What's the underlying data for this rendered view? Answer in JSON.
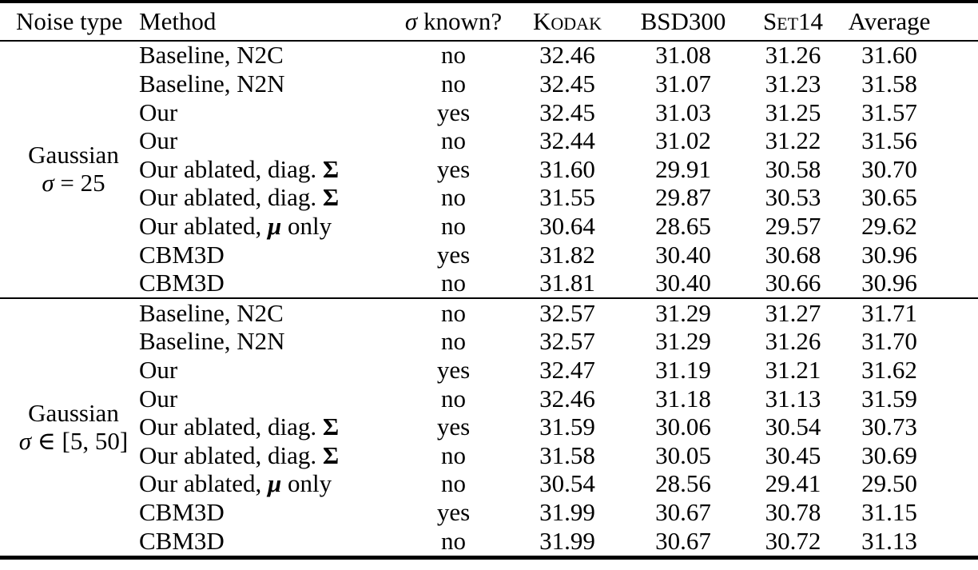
{
  "page": {
    "background": "#ffffff",
    "text_color": "#000000"
  },
  "table": {
    "columns": [
      {
        "key": "noise",
        "label": "Noise type",
        "align": "left",
        "small_caps": false
      },
      {
        "key": "method",
        "label": "Method",
        "align": "left",
        "small_caps": false
      },
      {
        "key": "sigma_known",
        "label": "σ known?",
        "align": "center",
        "small_caps": false
      },
      {
        "key": "kodak",
        "label": "Kodak",
        "align": "center",
        "small_caps": true
      },
      {
        "key": "bsd300",
        "label": "BSD300",
        "align": "center",
        "small_caps": false
      },
      {
        "key": "set14",
        "label": "Set14",
        "align": "center",
        "small_caps": true
      },
      {
        "key": "average",
        "label": "Average",
        "align": "center",
        "small_caps": false
      }
    ],
    "sections": [
      {
        "noise_type": {
          "line1": "Gaussian",
          "line2": "σ = 25"
        },
        "rows": [
          {
            "method": "Baseline, N2C",
            "sigma_known": "no",
            "kodak": "32.46",
            "bsd300": "31.08",
            "set14": "31.26",
            "average": "31.60"
          },
          {
            "method": "Baseline, N2N",
            "sigma_known": "no",
            "kodak": "32.45",
            "bsd300": "31.07",
            "set14": "31.23",
            "average": "31.58"
          },
          {
            "method": "Our",
            "sigma_known": "yes",
            "kodak": "32.45",
            "bsd300": "31.03",
            "set14": "31.25",
            "average": "31.57"
          },
          {
            "method": "Our",
            "sigma_known": "no",
            "kodak": "32.44",
            "bsd300": "31.02",
            "set14": "31.22",
            "average": "31.56"
          },
          {
            "method": "Our ablated, diag. Σ",
            "sigma_known": "yes",
            "kodak": "31.60",
            "bsd300": "29.91",
            "set14": "30.58",
            "average": "30.70"
          },
          {
            "method": "Our ablated, diag. Σ",
            "sigma_known": "no",
            "kodak": "31.55",
            "bsd300": "29.87",
            "set14": "30.53",
            "average": "30.65"
          },
          {
            "method": "Our ablated, μ only",
            "sigma_known": "no",
            "kodak": "30.64",
            "bsd300": "28.65",
            "set14": "29.57",
            "average": "29.62"
          },
          {
            "method": "CBM3D",
            "sigma_known": "yes",
            "kodak": "31.82",
            "bsd300": "30.40",
            "set14": "30.68",
            "average": "30.96"
          },
          {
            "method": "CBM3D",
            "sigma_known": "no",
            "kodak": "31.81",
            "bsd300": "30.40",
            "set14": "30.66",
            "average": "30.96"
          }
        ]
      },
      {
        "noise_type": {
          "line1": "Gaussian",
          "line2": "σ ∈ [5, 50]"
        },
        "rows": [
          {
            "method": "Baseline, N2C",
            "sigma_known": "no",
            "kodak": "32.57",
            "bsd300": "31.29",
            "set14": "31.27",
            "average": "31.71"
          },
          {
            "method": "Baseline, N2N",
            "sigma_known": "no",
            "kodak": "32.57",
            "bsd300": "31.29",
            "set14": "31.26",
            "average": "31.70"
          },
          {
            "method": "Our",
            "sigma_known": "yes",
            "kodak": "32.47",
            "bsd300": "31.19",
            "set14": "31.21",
            "average": "31.62"
          },
          {
            "method": "Our",
            "sigma_known": "no",
            "kodak": "32.46",
            "bsd300": "31.18",
            "set14": "31.13",
            "average": "31.59"
          },
          {
            "method": "Our ablated, diag. Σ",
            "sigma_known": "yes",
            "kodak": "31.59",
            "bsd300": "30.06",
            "set14": "30.54",
            "average": "30.73"
          },
          {
            "method": "Our ablated, diag. Σ",
            "sigma_known": "no",
            "kodak": "31.58",
            "bsd300": "30.05",
            "set14": "30.45",
            "average": "30.69"
          },
          {
            "method": "Our ablated, μ only",
            "sigma_known": "no",
            "kodak": "30.54",
            "bsd300": "28.56",
            "set14": "29.41",
            "average": "29.50"
          },
          {
            "method": "CBM3D",
            "sigma_known": "yes",
            "kodak": "31.99",
            "bsd300": "30.67",
            "set14": "30.78",
            "average": "31.15"
          },
          {
            "method": "CBM3D",
            "sigma_known": "no",
            "kodak": "31.99",
            "bsd300": "30.67",
            "set14": "30.72",
            "average": "31.13"
          }
        ]
      }
    ]
  },
  "format": {
    "math_symbols": [
      {
        "char": "σ",
        "style": "italic"
      },
      {
        "char": "Σ",
        "style": "bold"
      },
      {
        "char": "μ",
        "style": "bold-italic"
      }
    ]
  }
}
